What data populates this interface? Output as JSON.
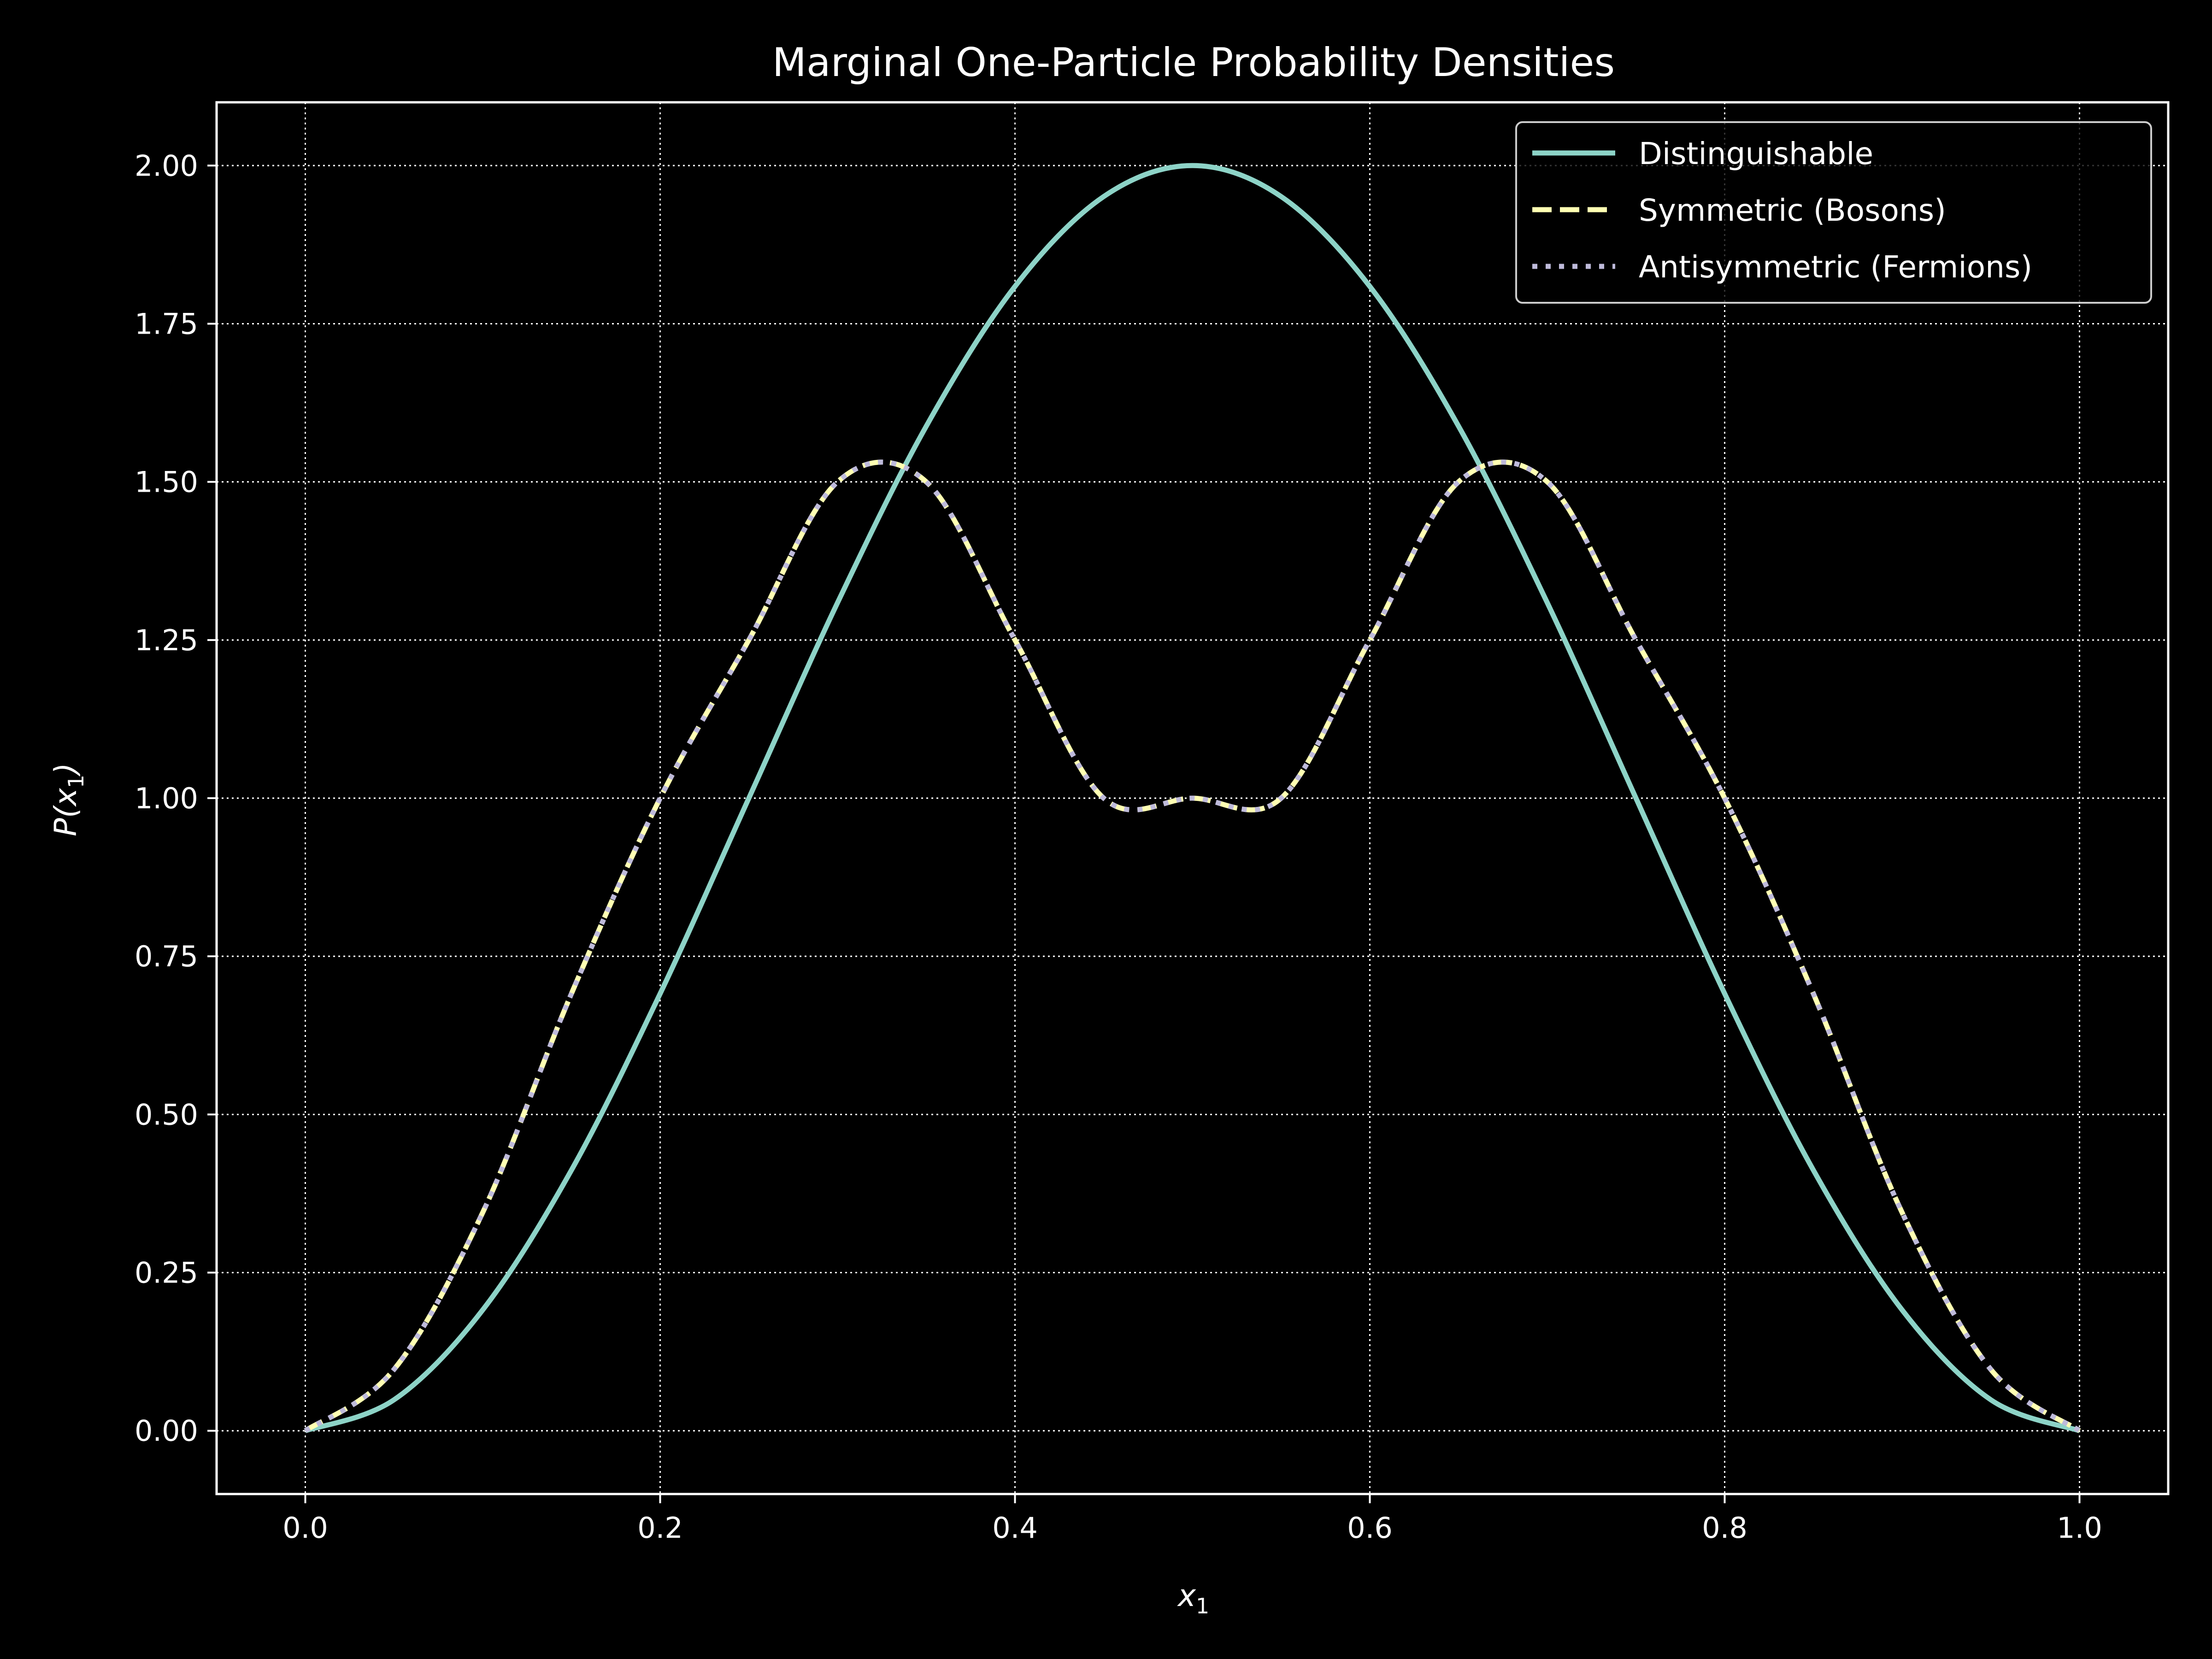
{
  "chart_data": {
    "type": "line",
    "title": "Marginal One-Particle Probability Densities",
    "xlabel": "x",
    "xlabel_sub": "1",
    "ylabel_pre": "P(x",
    "ylabel_sub": "1",
    "ylabel_post": ")",
    "xlim": [
      -0.05,
      1.05
    ],
    "ylim": [
      -0.1,
      2.1
    ],
    "x_ticks": [
      "0.0",
      "0.2",
      "0.4",
      "0.6",
      "0.8",
      "1.0"
    ],
    "y_ticks": [
      "0.00",
      "0.25",
      "0.50",
      "0.75",
      "1.00",
      "1.25",
      "1.50",
      "1.75",
      "2.00"
    ],
    "grid": true,
    "legend_position": "top-right",
    "x": [
      0.0,
      0.05,
      0.1,
      0.15,
      0.2,
      0.25,
      0.3,
      0.35,
      0.4,
      0.45,
      0.5,
      0.55,
      0.6,
      0.65,
      0.7,
      0.75,
      0.8,
      0.85,
      0.9,
      0.95,
      1.0
    ],
    "series": [
      {
        "name": "Distinguishable",
        "color": "#8dd3c7",
        "style": "solid",
        "values": [
          0.0,
          0.049,
          0.191,
          0.412,
          0.691,
          1.0,
          1.309,
          1.588,
          1.809,
          1.951,
          2.0,
          1.951,
          1.809,
          1.588,
          1.309,
          1.0,
          0.691,
          0.412,
          0.191,
          0.049,
          0.0
        ]
      },
      {
        "name": "Symmetric (Bosons)",
        "color": "#ffffb3",
        "style": "dashed",
        "values": [
          0.0,
          0.097,
          0.345,
          0.691,
          1.0,
          1.25,
          1.5,
          1.5,
          1.25,
          1.0,
          1.0,
          1.0,
          1.25,
          1.5,
          1.5,
          1.25,
          1.0,
          0.691,
          0.345,
          0.097,
          0.0
        ]
      },
      {
        "name": "Antisymmetric (Fermions)",
        "color": "#bebada",
        "style": "dotted",
        "values": [
          0.0,
          0.097,
          0.345,
          0.691,
          1.0,
          1.25,
          1.5,
          1.5,
          1.25,
          1.0,
          1.0,
          1.0,
          1.25,
          1.5,
          1.5,
          1.25,
          1.0,
          0.691,
          0.345,
          0.097,
          0.0
        ]
      }
    ]
  }
}
